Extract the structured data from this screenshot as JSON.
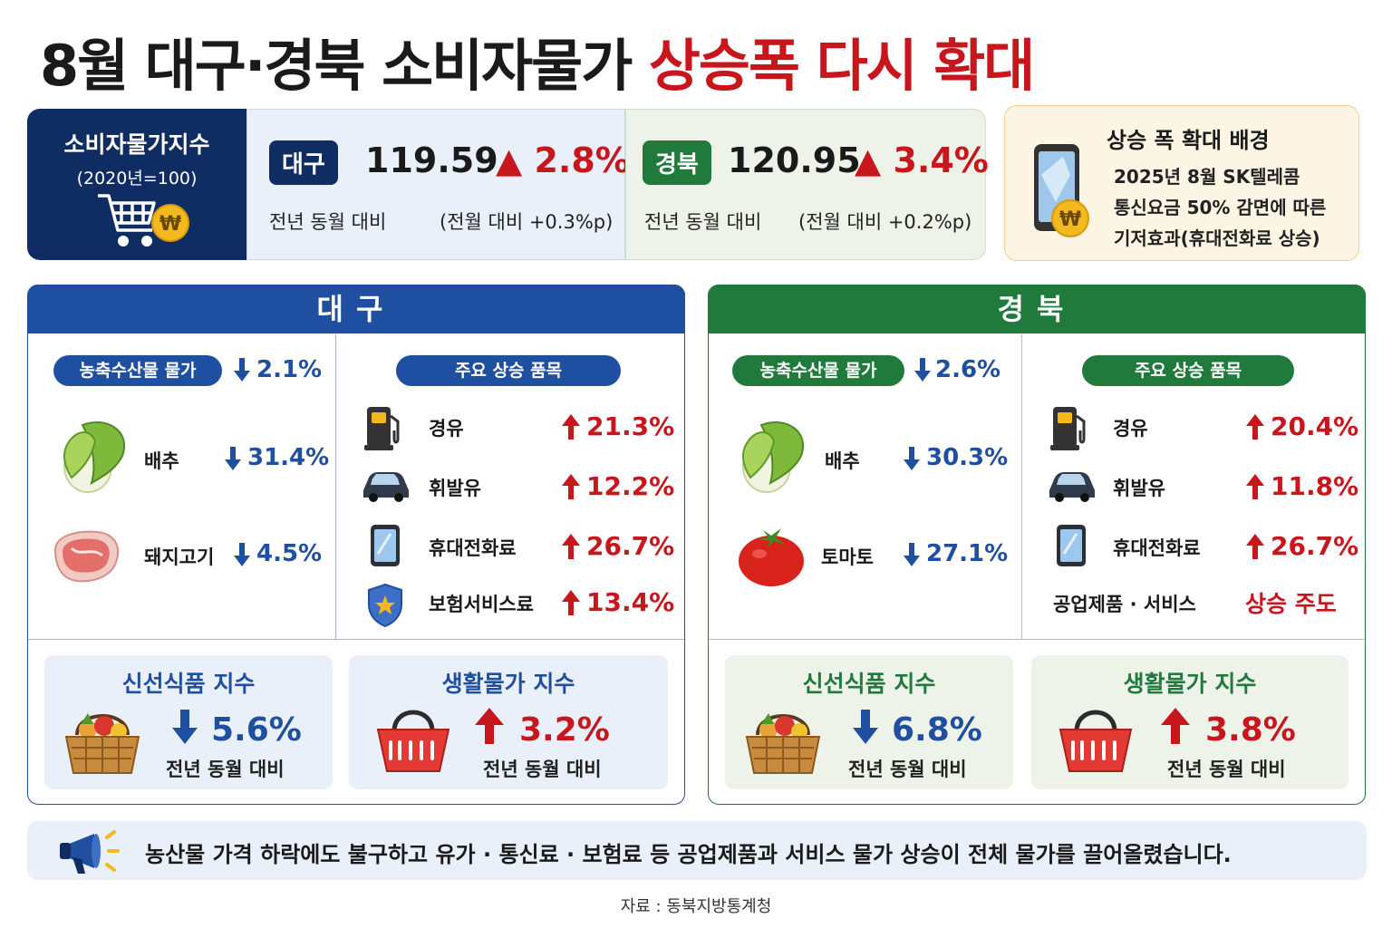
{
  "title": {
    "main": "8월 대구·경북 소비자물가 ",
    "highlight": "상승폭 다시 확대"
  },
  "cpi_label": {
    "line1": "소비자물가지수",
    "line2": "(2020년=100)"
  },
  "top": {
    "daegu": {
      "badge": "대구",
      "index": "119.59",
      "change": "▲ 2.8%",
      "yoy": "전년 동월 대비",
      "mom": "(전월 대비 +0.3%p)"
    },
    "gyeongbuk": {
      "badge": "경북",
      "index": "120.95",
      "change": "▲ 3.4%",
      "yoy": "전년 동월 대비",
      "mom": "(전월 대비 +0.2%p)"
    }
  },
  "background": {
    "title": "상승 폭 확대 배경",
    "lines": [
      "2025년 8월 SK텔레콤",
      "통신요금 50% 감면에 따른",
      "기저효과(휴대전화료 상승)"
    ]
  },
  "panels": {
    "daegu": {
      "header": "대구",
      "agri_pill": "농축수산물 물가",
      "agri_change": "2.1%",
      "agri_items": [
        {
          "label": "배추",
          "change": "31.4%",
          "icon": "cabbage-icon"
        },
        {
          "label": "돼지고기",
          "change": "4.5%",
          "icon": "pork-icon"
        }
      ],
      "rise_pill": "주요 상승 품목",
      "rise_items": [
        {
          "label": "경유",
          "change": "21.3%",
          "icon": "fuel-pump-icon"
        },
        {
          "label": "휘발유",
          "change": "12.2%",
          "icon": "car-icon"
        },
        {
          "label": "휴대전화료",
          "change": "26.7%",
          "icon": "phone-icon"
        },
        {
          "label": "보험서비스료",
          "change": "13.4%",
          "icon": "shield-icon"
        }
      ],
      "fresh": {
        "title": "신선식품 지수",
        "value": "5.6%",
        "caption": "전년 동월 대비"
      },
      "living": {
        "title": "생활물가 지수",
        "value": "3.2%",
        "caption": "전년 동월 대비"
      }
    },
    "gyeongbuk": {
      "header": "경북",
      "agri_pill": "농축수산물 물가",
      "agri_change": "2.6%",
      "agri_items": [
        {
          "label": "배추",
          "change": "30.3%",
          "icon": "cabbage-icon"
        },
        {
          "label": "토마토",
          "change": "27.1%",
          "icon": "tomato-icon"
        }
      ],
      "rise_pill": "주요 상승 품목",
      "rise_items": [
        {
          "label": "경유",
          "change": "20.4%",
          "icon": "fuel-pump-icon"
        },
        {
          "label": "휘발유",
          "change": "11.8%",
          "icon": "car-icon"
        },
        {
          "label": "휴대전화료",
          "change": "26.7%",
          "icon": "phone-icon"
        }
      ],
      "industry_label": "공업제품 · 서비스",
      "industry_value": "상승 주도",
      "fresh": {
        "title": "신선식품 지수",
        "value": "6.8%",
        "caption": "전년 동월 대비"
      },
      "living": {
        "title": "생활물가 지수",
        "value": "3.8%",
        "caption": "전년 동월 대비"
      }
    }
  },
  "note": "농산물 가격 하락에도 불구하고 유가 · 통신료 · 보험료 등 공업제품과 서비스 물가 상승이 전체 물가를 끌어올렸습니다.",
  "source": "자료 : 동북지방통계청",
  "colors": {
    "navy": "#0f2d62",
    "blue": "#1f4fa0",
    "green": "#1f7a3c",
    "red": "#c8161d"
  }
}
